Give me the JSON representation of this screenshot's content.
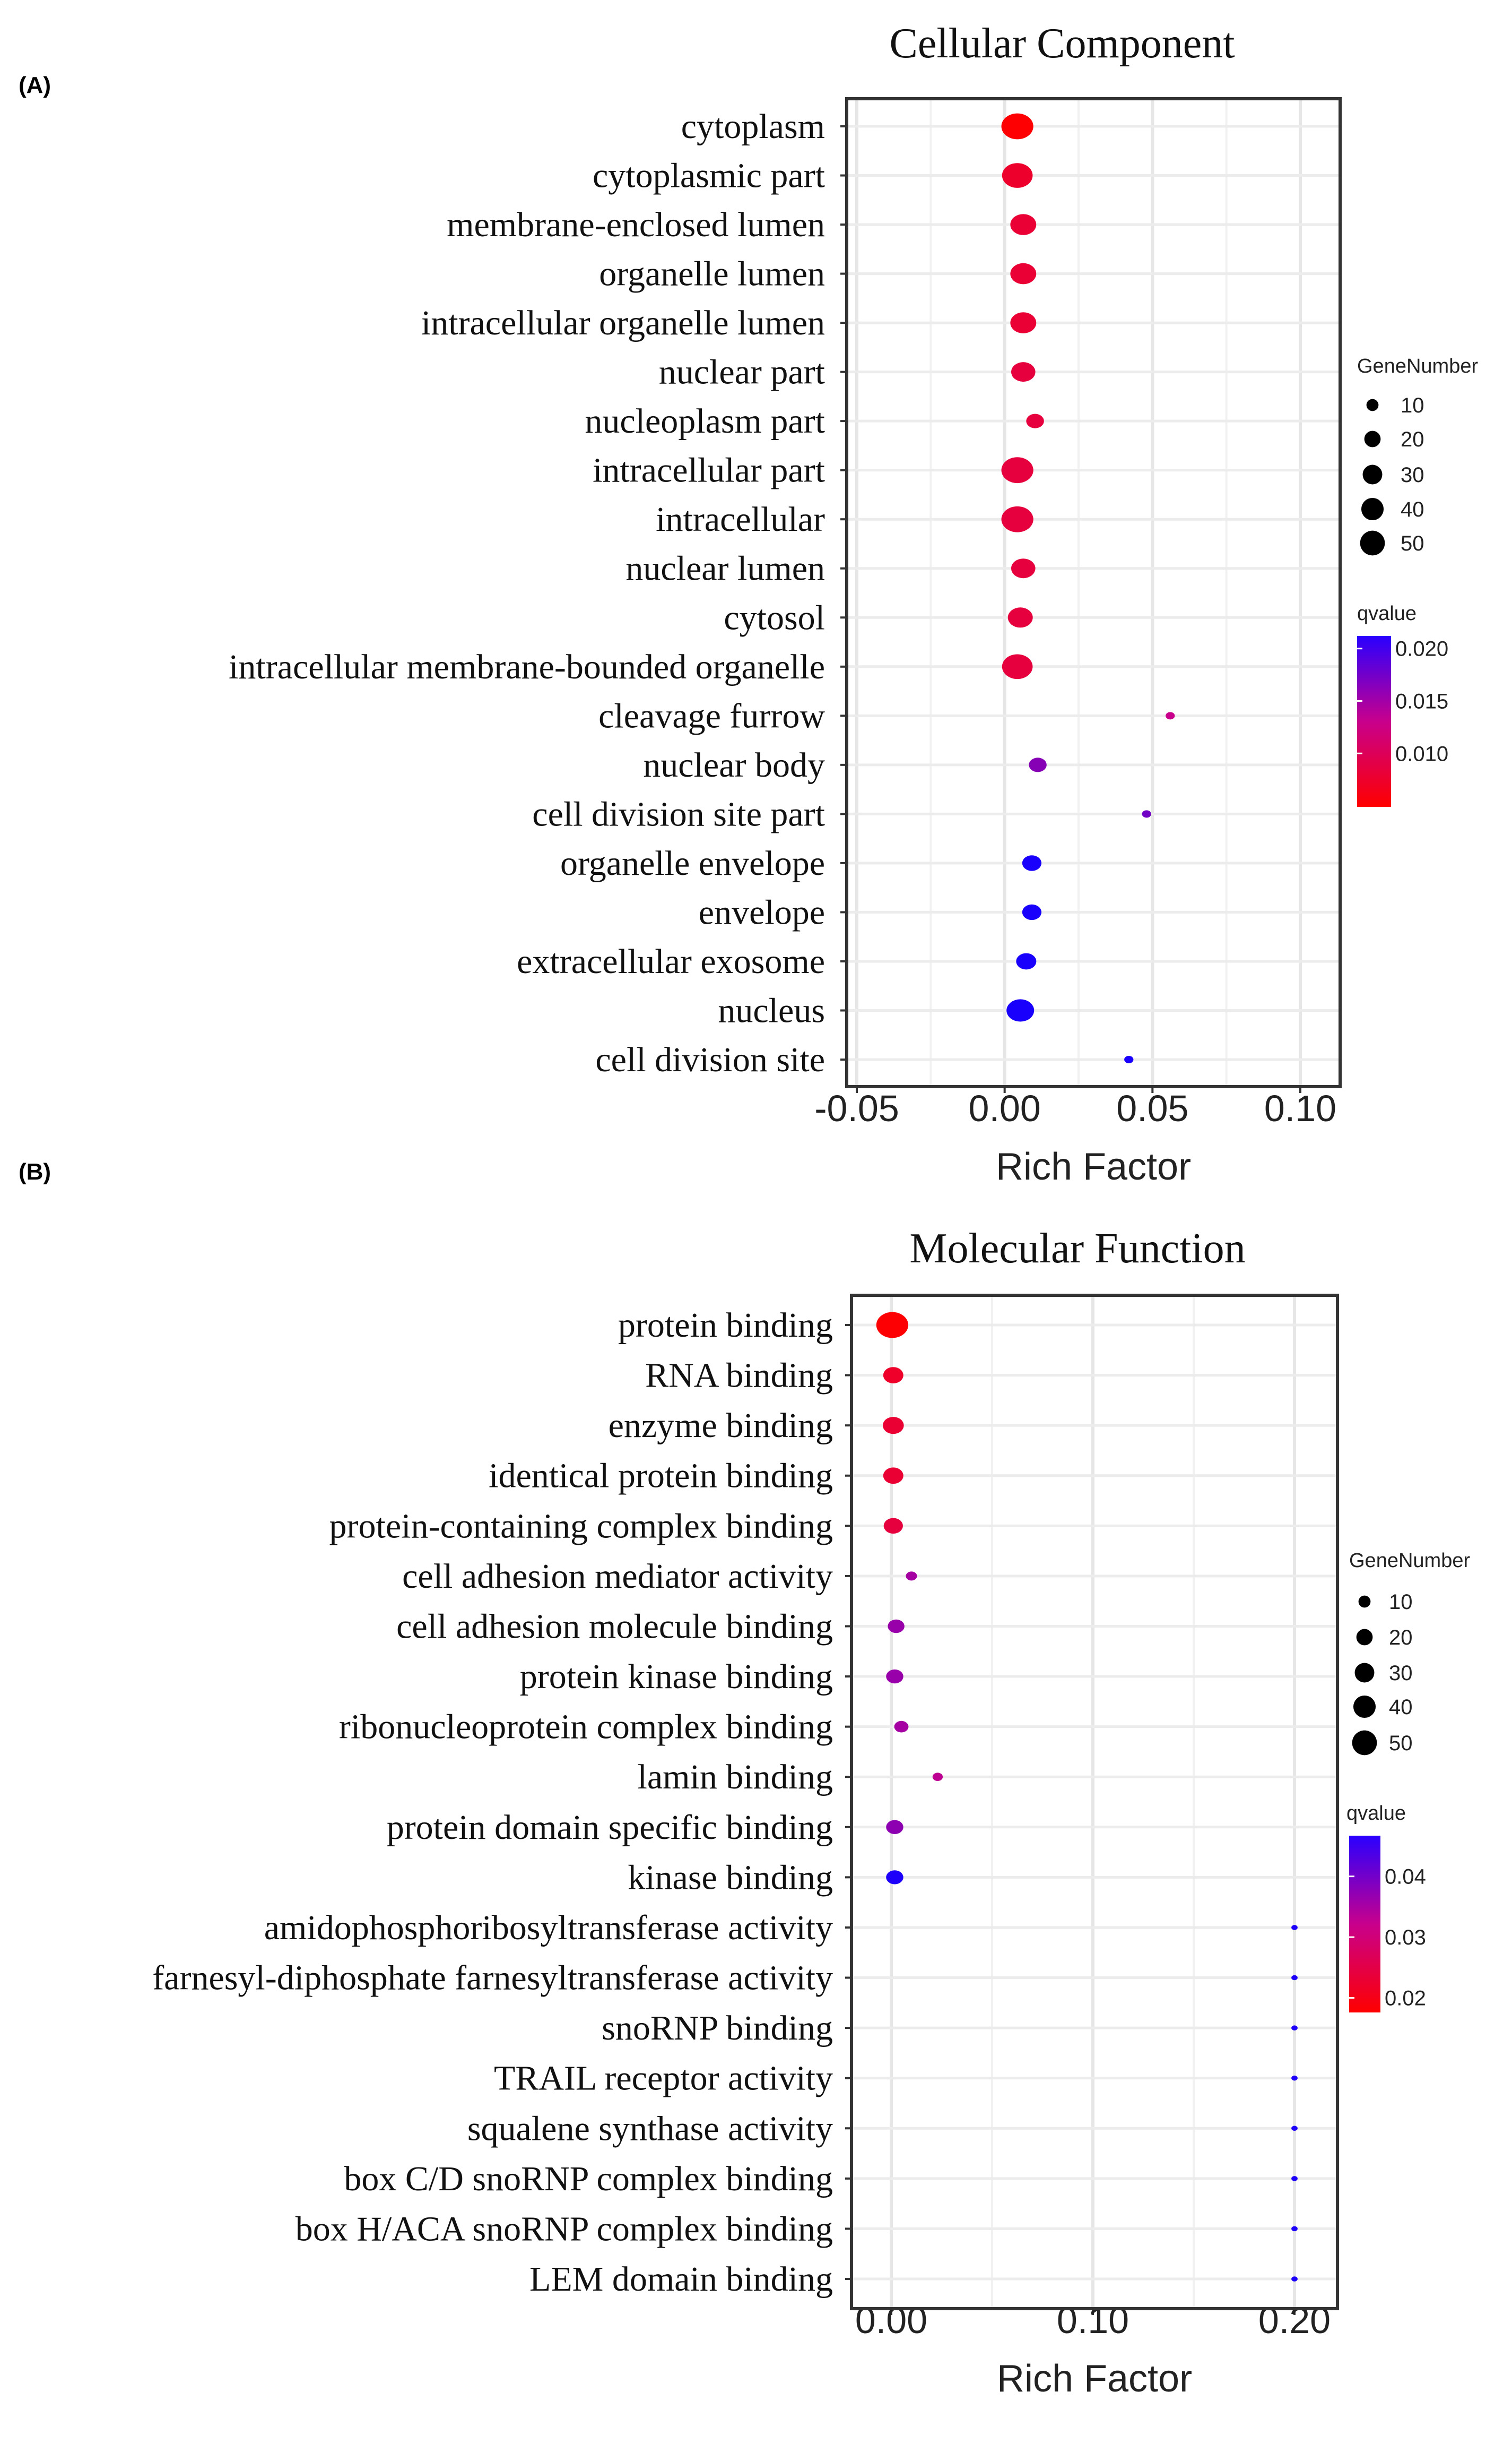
{
  "chart_data": [
    {
      "panel_label": "(A)",
      "type": "scatter",
      "title": "Cellular Component",
      "xlabel": "Rich Factor",
      "ylabel": "",
      "xlim": [
        -0.055,
        0.112
      ],
      "xticks": [
        -0.05,
        0.0,
        0.05,
        0.1
      ],
      "xtick_labels": [
        "-0.05",
        "0.00",
        "0.05",
        "0.10"
      ],
      "grid": true,
      "size_legend": {
        "title": "GeneNumber",
        "values": [
          10,
          20,
          30,
          40,
          50
        ],
        "labels": [
          "10",
          "20",
          "30",
          "40",
          "50"
        ]
      },
      "color_legend": {
        "title": "qvalue",
        "range": [
          0.0049,
          0.0212
        ],
        "ticks": [
          0.02,
          0.015,
          0.01
        ],
        "tick_labels": [
          "0.020",
          "0.015",
          "0.010"
        ],
        "low_color": "#FF0000",
        "high_color": "#0000FF"
      },
      "points": [
        {
          "term": "cytoplasm",
          "rich_factor": 0.0043,
          "gene_number": 55,
          "qvalue": 0.005
        },
        {
          "term": "cytoplasmic part",
          "rich_factor": 0.0043,
          "gene_number": 50,
          "qvalue": 0.0075
        },
        {
          "term": "membrane-enclosed  lumen",
          "rich_factor": 0.0063,
          "gene_number": 35,
          "qvalue": 0.008
        },
        {
          "term": "organelle lumen",
          "rich_factor": 0.0063,
          "gene_number": 35,
          "qvalue": 0.008
        },
        {
          "term": "intracellular organelle lumen",
          "rich_factor": 0.0063,
          "gene_number": 35,
          "qvalue": 0.008
        },
        {
          "term": "nuclear part",
          "rich_factor": 0.0063,
          "gene_number": 30,
          "qvalue": 0.0085
        },
        {
          "term": "nucleoplasm part",
          "rich_factor": 0.0103,
          "gene_number": 15,
          "qvalue": 0.0085
        },
        {
          "term": "intracellular part",
          "rich_factor": 0.0043,
          "gene_number": 55,
          "qvalue": 0.0085
        },
        {
          "term": "intracellular",
          "rich_factor": 0.0043,
          "gene_number": 55,
          "qvalue": 0.0085
        },
        {
          "term": "nuclear lumen",
          "rich_factor": 0.0063,
          "gene_number": 30,
          "qvalue": 0.0085
        },
        {
          "term": "cytosol",
          "rich_factor": 0.0053,
          "gene_number": 32,
          "qvalue": 0.0085
        },
        {
          "term": "intracellular membrane-bounded  organelle",
          "rich_factor": 0.0043,
          "gene_number": 50,
          "qvalue": 0.0085
        },
        {
          "term": "cleavage  furrow",
          "rich_factor": 0.056,
          "gene_number": 3,
          "qvalue": 0.013
        },
        {
          "term": "nuclear body",
          "rich_factor": 0.0112,
          "gene_number": 15,
          "qvalue": 0.016
        },
        {
          "term": "cell division site part",
          "rich_factor": 0.048,
          "gene_number": 3,
          "qvalue": 0.017
        },
        {
          "term": "organelle envelope",
          "rich_factor": 0.0092,
          "gene_number": 18,
          "qvalue": 0.021
        },
        {
          "term": "envelope",
          "rich_factor": 0.0092,
          "gene_number": 18,
          "qvalue": 0.021
        },
        {
          "term": "extracellular exosome",
          "rich_factor": 0.0073,
          "gene_number": 20,
          "qvalue": 0.021
        },
        {
          "term": "nucleus",
          "rich_factor": 0.0053,
          "gene_number": 40,
          "qvalue": 0.021
        },
        {
          "term": "cell division site",
          "rich_factor": 0.042,
          "gene_number": 3,
          "qvalue": 0.021
        }
      ]
    },
    {
      "panel_label": "(B)",
      "type": "scatter",
      "title": "Molecular Function",
      "xlabel": "Rich Factor",
      "ylabel": "",
      "xlim": [
        -0.02,
        0.221
      ],
      "xticks": [
        0.0,
        0.1,
        0.2
      ],
      "xtick_labels": [
        "0.00",
        "0.10",
        "0.20"
      ],
      "grid": true,
      "size_legend": {
        "title": "GeneNumber",
        "values": [
          10,
          20,
          30,
          40,
          50
        ],
        "labels": [
          "10",
          "20",
          "30",
          "40",
          "50"
        ]
      },
      "color_legend": {
        "title": "qvalue",
        "range": [
          0.0176,
          0.0467
        ],
        "ticks": [
          0.04,
          0.03,
          0.02
        ],
        "tick_labels": [
          "0.04",
          "0.03",
          "0.02"
        ],
        "low_color": "#FF0000",
        "high_color": "#0000FF"
      },
      "points": [
        {
          "term": "protein binding",
          "rich_factor": 0.0005,
          "gene_number": 55,
          "qvalue": 0.018
        },
        {
          "term": "RNA  binding",
          "rich_factor": 0.001,
          "gene_number": 20,
          "qvalue": 0.022
        },
        {
          "term": "enzyme  binding",
          "rich_factor": 0.001,
          "gene_number": 22,
          "qvalue": 0.023
        },
        {
          "term": "identical protein binding",
          "rich_factor": 0.001,
          "gene_number": 20,
          "qvalue": 0.023
        },
        {
          "term": "protein-containing complex binding",
          "rich_factor": 0.001,
          "gene_number": 18,
          "qvalue": 0.024
        },
        {
          "term": "cell adhesion mediator activity",
          "rich_factor": 0.01,
          "gene_number": 5,
          "qvalue": 0.035
        },
        {
          "term": "cell adhesion molecule binding",
          "rich_factor": 0.0024,
          "gene_number": 13,
          "qvalue": 0.036
        },
        {
          "term": "protein kinase binding",
          "rich_factor": 0.0017,
          "gene_number": 14,
          "qvalue": 0.036
        },
        {
          "term": "ribonucleoprotein complex binding",
          "rich_factor": 0.005,
          "gene_number": 9,
          "qvalue": 0.035
        },
        {
          "term": "lamin binding",
          "rich_factor": 0.023,
          "gene_number": 4,
          "qvalue": 0.033
        },
        {
          "term": "protein domain specific binding",
          "rich_factor": 0.0017,
          "gene_number": 14,
          "qvalue": 0.037
        },
        {
          "term": "kinase binding",
          "rich_factor": 0.0017,
          "gene_number": 14,
          "qvalue": 0.046
        },
        {
          "term": "amidophosphoribosyltransferase  activity",
          "rich_factor": 0.2,
          "gene_number": 1,
          "qvalue": 0.046
        },
        {
          "term": "farnesyl-diphosphate  farnesyltransferase  activity",
          "rich_factor": 0.2,
          "gene_number": 1,
          "qvalue": 0.046
        },
        {
          "term": "snoRNP binding",
          "rich_factor": 0.2,
          "gene_number": 1,
          "qvalue": 0.046
        },
        {
          "term": "TRAIL  receptor activity",
          "rich_factor": 0.2,
          "gene_number": 1,
          "qvalue": 0.046
        },
        {
          "term": "squalene synthase activity",
          "rich_factor": 0.2,
          "gene_number": 1,
          "qvalue": 0.046
        },
        {
          "term": "box C/D snoRNP complex binding",
          "rich_factor": 0.2,
          "gene_number": 1,
          "qvalue": 0.046
        },
        {
          "term": "box H/ACA  snoRNP complex binding",
          "rich_factor": 0.2,
          "gene_number": 1,
          "qvalue": 0.046
        },
        {
          "term": "LEM domain binding",
          "rich_factor": 0.2,
          "gene_number": 1,
          "qvalue": 0.046
        }
      ]
    }
  ]
}
